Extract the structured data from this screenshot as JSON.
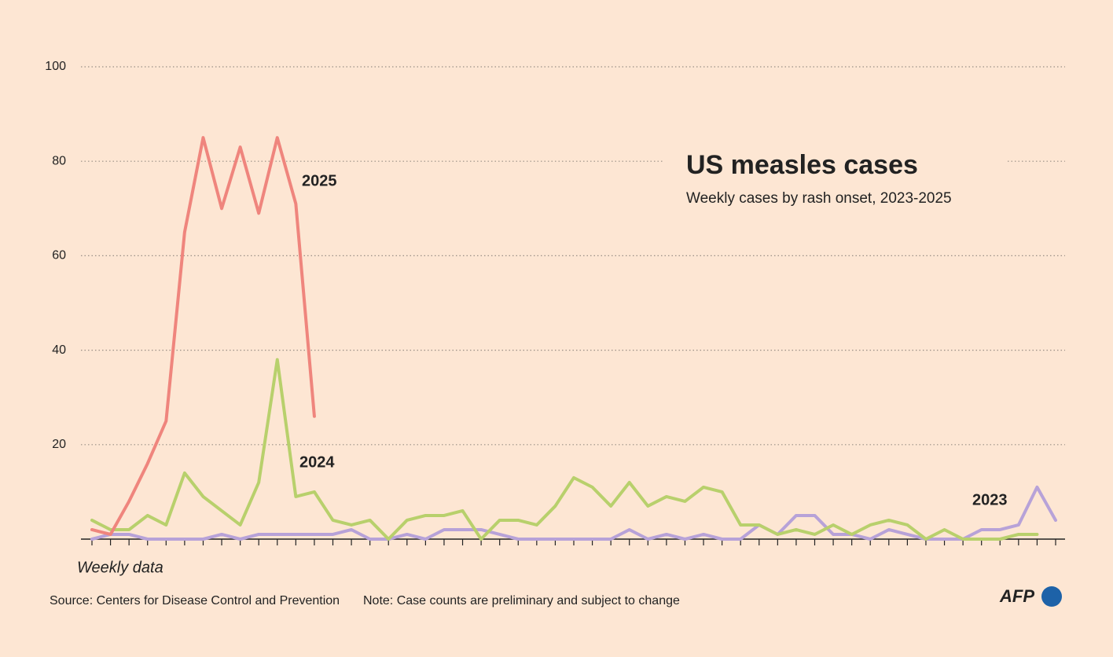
{
  "chart_data": {
    "type": "line",
    "title": "US measles cases",
    "subtitle": "Weekly cases by rash onset, 2023-2025",
    "x_label": "Weekly data",
    "source": "Source: Centers for Disease Control and Prevention",
    "note": "Note: Case counts are preliminary and subject to change",
    "logo": "AFP",
    "categories": [
      null,
      null,
      null,
      null,
      null,
      null,
      null,
      null,
      null,
      null,
      null,
      null,
      null,
      null,
      null,
      null,
      null,
      null,
      null,
      null,
      null,
      null,
      null,
      null,
      null,
      null,
      null,
      null,
      null,
      null,
      null,
      null,
      null,
      null,
      null,
      null,
      null,
      null,
      null,
      null,
      null,
      null,
      null,
      null,
      null,
      null,
      null,
      null,
      null,
      null,
      null,
      null,
      null
    ],
    "ylim": [
      0,
      100
    ],
    "yticks": [
      20,
      40,
      60,
      80,
      100
    ],
    "grid": true,
    "series": [
      {
        "name": "2023",
        "color": "#b7a2d8",
        "values": [
          0,
          1,
          1,
          0,
          0,
          0,
          0,
          1,
          0,
          1,
          1,
          1,
          1,
          1,
          2,
          0,
          0,
          1,
          0,
          2,
          2,
          2,
          1,
          0,
          0,
          0,
          0,
          0,
          0,
          2,
          0,
          1,
          0,
          1,
          0,
          0,
          3,
          1,
          5,
          5,
          1,
          1,
          0,
          2,
          1,
          0,
          0,
          0,
          2,
          2,
          3,
          11,
          4
        ]
      },
      {
        "name": "2024",
        "color": "#b8d06c",
        "values": [
          4,
          2,
          2,
          5,
          3,
          14,
          9,
          6,
          3,
          12,
          38,
          9,
          10,
          4,
          3,
          4,
          0,
          4,
          5,
          5,
          6,
          0,
          4,
          4,
          3,
          7,
          13,
          11,
          7,
          12,
          7,
          9,
          8,
          11,
          10,
          3,
          3,
          1,
          2,
          1,
          3,
          1,
          3,
          4,
          3,
          0,
          2,
          0,
          0,
          0,
          1,
          1,
          null
        ]
      },
      {
        "name": "2025",
        "color": "#ef857d",
        "values": [
          2,
          1,
          8,
          16,
          25,
          65,
          85,
          70,
          83,
          69,
          85,
          71,
          26,
          null,
          null,
          null,
          null,
          null,
          null,
          null,
          null,
          null,
          null,
          null,
          null,
          null,
          null,
          null,
          null,
          null,
          null,
          null,
          null,
          null,
          null,
          null,
          null,
          null,
          null,
          null,
          null,
          null,
          null,
          null,
          null,
          null,
          null,
          null,
          null,
          null,
          null,
          null,
          null
        ]
      }
    ]
  }
}
